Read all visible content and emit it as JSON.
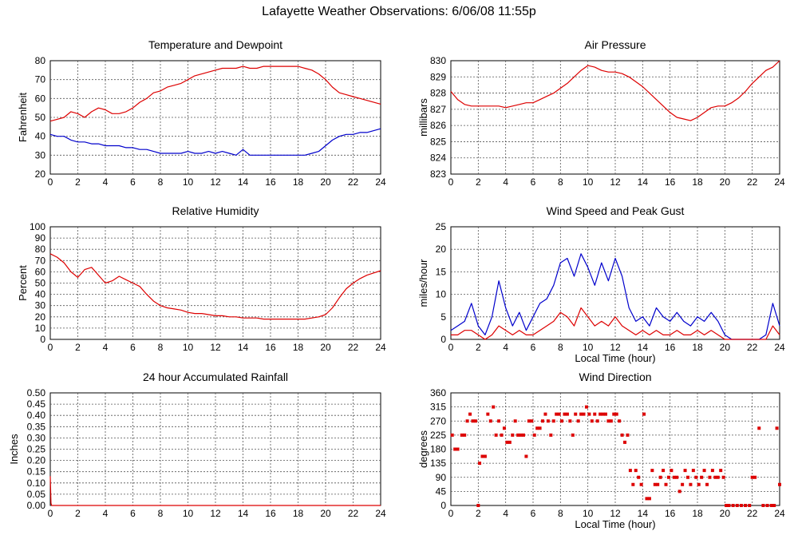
{
  "title": "Lafayette Weather Observations: 6/06/08 11:55p",
  "colors": {
    "red": "#dd0000",
    "blue": "#0000cc",
    "grid": "#555555"
  },
  "chart_data": [
    {
      "id": "temp",
      "type": "line",
      "title": "Temperature and Dewpoint",
      "xlabel": "",
      "ylabel": "Fahrenheit",
      "xlim": [
        0,
        24
      ],
      "ylim": [
        20,
        80
      ],
      "xticks": [
        0,
        2,
        4,
        6,
        8,
        10,
        12,
        14,
        16,
        18,
        20,
        22,
        24
      ],
      "yticks": [
        20,
        30,
        40,
        50,
        60,
        70,
        80
      ],
      "series": [
        {
          "color": "red",
          "style": "line",
          "x": [
            0,
            0.5,
            1,
            1.5,
            2,
            2.5,
            3,
            3.5,
            4,
            4.5,
            5,
            5.5,
            6,
            6.5,
            7,
            7.5,
            8,
            8.5,
            9,
            9.5,
            10,
            10.5,
            11,
            11.5,
            12,
            12.5,
            13,
            13.5,
            14,
            14.5,
            15,
            15.5,
            16,
            16.5,
            17,
            17.5,
            18,
            18.5,
            19,
            19.5,
            20,
            20.5,
            21,
            21.5,
            22,
            22.5,
            23,
            23.5,
            24
          ],
          "y": [
            48,
            49,
            50,
            53,
            52,
            50,
            53,
            55,
            54,
            52,
            52,
            53,
            55,
            58,
            60,
            63,
            64,
            66,
            67,
            68,
            70,
            72,
            73,
            74,
            75,
            76,
            76,
            76,
            77,
            76,
            76,
            77,
            77,
            77,
            77,
            77,
            77,
            76,
            75,
            73,
            70,
            66,
            63,
            62,
            61,
            60,
            59,
            58,
            57
          ]
        },
        {
          "color": "blue",
          "style": "line",
          "x": [
            0,
            0.5,
            1,
            1.5,
            2,
            2.5,
            3,
            3.5,
            4,
            4.5,
            5,
            5.5,
            6,
            6.5,
            7,
            7.5,
            8,
            8.5,
            9,
            9.5,
            10,
            10.5,
            11,
            11.5,
            12,
            12.5,
            13,
            13.5,
            14,
            14.5,
            15,
            15.5,
            16,
            16.5,
            17,
            17.5,
            18,
            18.5,
            19,
            19.5,
            20,
            20.5,
            21,
            21.5,
            22,
            22.5,
            23,
            23.5,
            24
          ],
          "y": [
            41,
            40,
            40,
            38,
            37,
            37,
            36,
            36,
            35,
            35,
            35,
            34,
            34,
            33,
            33,
            32,
            31,
            31,
            31,
            31,
            32,
            31,
            31,
            32,
            31,
            32,
            31,
            30,
            33,
            30,
            30,
            30,
            30,
            30,
            30,
            30,
            30,
            30,
            31,
            32,
            35,
            38,
            40,
            41,
            41,
            42,
            42,
            43,
            44
          ]
        }
      ]
    },
    {
      "id": "pressure",
      "type": "line",
      "title": "Air Pressure",
      "xlabel": "",
      "ylabel": "millibars",
      "xlim": [
        0,
        24
      ],
      "ylim": [
        823,
        830
      ],
      "xticks": [
        0,
        2,
        4,
        6,
        8,
        10,
        12,
        14,
        16,
        18,
        20,
        22,
        24
      ],
      "yticks": [
        823,
        824,
        825,
        826,
        827,
        828,
        829,
        830
      ],
      "series": [
        {
          "color": "red",
          "style": "line",
          "x": [
            0,
            0.5,
            1,
            1.5,
            2,
            2.5,
            3,
            3.5,
            4,
            4.5,
            5,
            5.5,
            6,
            6.5,
            7,
            7.5,
            8,
            8.5,
            9,
            9.5,
            10,
            10.5,
            11,
            11.5,
            12,
            12.5,
            13,
            13.5,
            14,
            14.5,
            15,
            15.5,
            16,
            16.5,
            17,
            17.5,
            18,
            18.5,
            19,
            19.5,
            20,
            20.5,
            21,
            21.5,
            22,
            22.5,
            23,
            23.5,
            24
          ],
          "y": [
            828.1,
            827.6,
            827.3,
            827.2,
            827.2,
            827.2,
            827.2,
            827.2,
            827.1,
            827.2,
            827.3,
            827.4,
            827.4,
            827.6,
            827.8,
            828.0,
            828.3,
            828.6,
            829.0,
            829.4,
            829.7,
            829.6,
            829.4,
            829.3,
            829.3,
            829.2,
            829.0,
            828.7,
            828.4,
            828.0,
            827.6,
            827.2,
            826.8,
            826.5,
            826.4,
            826.3,
            826.5,
            826.8,
            827.1,
            827.2,
            827.2,
            827.4,
            827.7,
            828.1,
            828.6,
            829.0,
            829.4,
            829.6,
            830.0
          ]
        }
      ]
    },
    {
      "id": "humidity",
      "type": "line",
      "title": "Relative Humidity",
      "xlabel": "",
      "ylabel": "Percent",
      "xlim": [
        0,
        24
      ],
      "ylim": [
        0,
        100
      ],
      "xticks": [
        0,
        2,
        4,
        6,
        8,
        10,
        12,
        14,
        16,
        18,
        20,
        22,
        24
      ],
      "yticks": [
        0,
        10,
        20,
        30,
        40,
        50,
        60,
        70,
        80,
        90,
        100
      ],
      "series": [
        {
          "color": "red",
          "style": "line",
          "x": [
            0,
            0.5,
            1,
            1.5,
            2,
            2.5,
            3,
            3.5,
            4,
            4.5,
            5,
            5.5,
            6,
            6.5,
            7,
            7.5,
            8,
            8.5,
            9,
            9.5,
            10,
            10.5,
            11,
            11.5,
            12,
            12.5,
            13,
            13.5,
            14,
            14.5,
            15,
            15.5,
            16,
            16.5,
            17,
            17.5,
            18,
            18.5,
            19,
            19.5,
            20,
            20.5,
            21,
            21.5,
            22,
            22.5,
            23,
            23.5,
            24
          ],
          "y": [
            76,
            73,
            68,
            60,
            55,
            62,
            64,
            57,
            50,
            52,
            56,
            53,
            50,
            47,
            40,
            34,
            30,
            28,
            27,
            26,
            24,
            23,
            23,
            22,
            21,
            21,
            20,
            20,
            19,
            19,
            19,
            18,
            18,
            18,
            18,
            18,
            18,
            18,
            19,
            20,
            22,
            28,
            37,
            45,
            50,
            54,
            57,
            59,
            61
          ]
        }
      ]
    },
    {
      "id": "wind",
      "type": "line",
      "title": "Wind Speed and Peak Gust",
      "xlabel": "Local Time (hour)",
      "ylabel": "miles/hour",
      "xlim": [
        0,
        24
      ],
      "ylim": [
        0,
        25
      ],
      "xticks": [
        0,
        2,
        4,
        6,
        8,
        10,
        12,
        14,
        16,
        18,
        20,
        22,
        24
      ],
      "yticks": [
        0,
        5,
        10,
        15,
        20,
        25
      ],
      "series": [
        {
          "color": "blue",
          "style": "line",
          "x": [
            0,
            0.5,
            1,
            1.5,
            2,
            2.5,
            3,
            3.5,
            4,
            4.5,
            5,
            5.5,
            6,
            6.5,
            7,
            7.5,
            8,
            8.5,
            9,
            9.5,
            10,
            10.5,
            11,
            11.5,
            12,
            12.5,
            13,
            13.5,
            14,
            14.5,
            15,
            15.5,
            16,
            16.5,
            17,
            17.5,
            18,
            18.5,
            19,
            19.5,
            20,
            20.5,
            21,
            21.5,
            22,
            22.5,
            23,
            23.5,
            24
          ],
          "y": [
            2,
            3,
            4,
            8,
            3,
            1,
            5,
            13,
            7,
            3,
            6,
            2,
            5,
            8,
            9,
            12,
            17,
            18,
            14,
            19,
            16,
            12,
            17,
            13,
            18,
            14,
            7,
            4,
            5,
            3,
            7,
            5,
            4,
            6,
            4,
            3,
            5,
            4,
            6,
            4,
            1,
            0,
            0,
            0,
            0,
            0,
            1,
            8,
            3
          ]
        },
        {
          "color": "red",
          "style": "line",
          "x": [
            0,
            0.5,
            1,
            1.5,
            2,
            2.5,
            3,
            3.5,
            4,
            4.5,
            5,
            5.5,
            6,
            6.5,
            7,
            7.5,
            8,
            8.5,
            9,
            9.5,
            10,
            10.5,
            11,
            11.5,
            12,
            12.5,
            13,
            13.5,
            14,
            14.5,
            15,
            15.5,
            16,
            16.5,
            17,
            17.5,
            18,
            18.5,
            19,
            19.5,
            20,
            20.5,
            21,
            21.5,
            22,
            22.5,
            23,
            23.5,
            24
          ],
          "y": [
            1,
            1,
            2,
            2,
            1,
            0,
            1,
            3,
            2,
            1,
            2,
            1,
            1,
            2,
            3,
            4,
            6,
            5,
            3,
            7,
            5,
            3,
            4,
            3,
            5,
            3,
            2,
            1,
            2,
            1,
            2,
            1,
            1,
            2,
            1,
            1,
            2,
            1,
            2,
            1,
            0,
            0,
            0,
            0,
            0,
            0,
            0,
            3,
            1
          ]
        }
      ]
    },
    {
      "id": "rain",
      "type": "line",
      "title": "24 hour Accumulated Rainfall",
      "xlabel": "",
      "ylabel": "Inches",
      "xlim": [
        0,
        24
      ],
      "ylim": [
        0,
        0.5
      ],
      "xticks": [
        0,
        2,
        4,
        6,
        8,
        10,
        12,
        14,
        16,
        18,
        20,
        22,
        24
      ],
      "yticks": [
        "0.00",
        "0.05",
        "0.10",
        "0.15",
        "0.20",
        "0.25",
        "0.30",
        "0.35",
        "0.40",
        "0.45",
        "0.50"
      ],
      "series": [
        {
          "color": "red",
          "style": "line",
          "x": [
            0,
            0.05,
            0.1,
            24
          ],
          "y": [
            0.13,
            0.01,
            0,
            0
          ]
        }
      ]
    },
    {
      "id": "direction",
      "type": "scatter",
      "title": "Wind Direction",
      "xlabel": "Local Time (hour)",
      "ylabel": "degrees",
      "xlim": [
        0,
        24
      ],
      "ylim": [
        0,
        360
      ],
      "xticks": [
        0,
        2,
        4,
        6,
        8,
        10,
        12,
        14,
        16,
        18,
        20,
        22,
        24
      ],
      "yticks": [
        0,
        45,
        90,
        135,
        180,
        225,
        270,
        315,
        360
      ],
      "series": [
        {
          "color": "red",
          "style": "points",
          "x": [
            0.1,
            0.3,
            0.5,
            0.8,
            1.0,
            1.2,
            1.4,
            1.6,
            1.8,
            2.0,
            2.1,
            2.3,
            2.5,
            2.7,
            2.9,
            3.1,
            3.3,
            3.5,
            3.7,
            3.9,
            4.1,
            4.3,
            4.5,
            4.7,
            4.9,
            5.1,
            5.3,
            5.5,
            5.7,
            5.9,
            6.1,
            6.3,
            6.5,
            6.7,
            6.9,
            7.1,
            7.3,
            7.5,
            7.7,
            7.9,
            8.1,
            8.3,
            8.5,
            8.7,
            8.9,
            9.1,
            9.3,
            9.5,
            9.7,
            9.9,
            10.1,
            10.3,
            10.5,
            10.7,
            10.9,
            11.1,
            11.3,
            11.5,
            11.7,
            11.9,
            12.1,
            12.3,
            12.5,
            12.7,
            12.9,
            13.1,
            13.3,
            13.5,
            13.7,
            13.9,
            14.1,
            14.3,
            14.5,
            14.7,
            14.9,
            15.1,
            15.3,
            15.5,
            15.7,
            15.9,
            16.1,
            16.3,
            16.5,
            16.7,
            16.9,
            17.1,
            17.3,
            17.5,
            17.7,
            17.9,
            18.1,
            18.3,
            18.5,
            18.7,
            18.9,
            19.1,
            19.3,
            19.5,
            19.7,
            19.9,
            20.1,
            20.3,
            20.6,
            20.9,
            21.2,
            21.5,
            21.8,
            22.0,
            22.2,
            22.5,
            22.8,
            23.1,
            23.4,
            23.6,
            23.8,
            24.0
          ],
          "y": [
            225,
            180,
            180,
            225,
            225,
            270,
            292,
            270,
            270,
            0,
            135,
            157,
            157,
            292,
            270,
            315,
            225,
            270,
            225,
            247,
            202,
            202,
            225,
            270,
            225,
            225,
            225,
            157,
            270,
            270,
            225,
            247,
            247,
            270,
            292,
            270,
            225,
            270,
            292,
            292,
            270,
            292,
            292,
            270,
            225,
            292,
            270,
            292,
            292,
            315,
            292,
            270,
            292,
            270,
            292,
            292,
            292,
            270,
            270,
            292,
            292,
            270,
            225,
            202,
            225,
            112,
            67,
            112,
            90,
            67,
            292,
            22,
            22,
            112,
            67,
            67,
            90,
            112,
            67,
            90,
            112,
            90,
            90,
            45,
            67,
            112,
            90,
            67,
            112,
            90,
            67,
            90,
            112,
            67,
            90,
            112,
            90,
            90,
            112,
            90,
            0,
            0,
            0,
            0,
            0,
            0,
            0,
            90,
            90,
            247,
            0,
            0,
            0,
            0,
            247,
            67
          ]
        }
      ]
    }
  ]
}
